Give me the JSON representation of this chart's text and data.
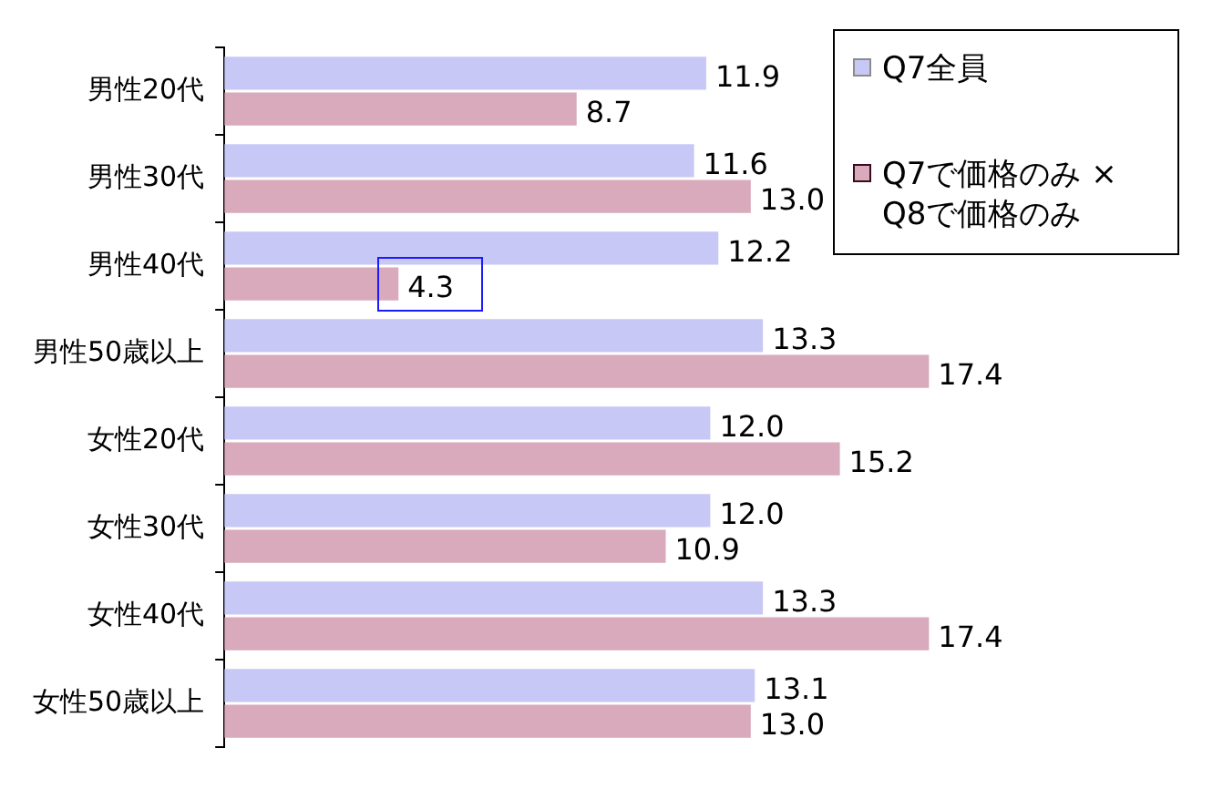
{
  "chart_data": {
    "type": "bar",
    "orientation": "horizontal",
    "categories": [
      "男性20代",
      "男性30代",
      "男性40代",
      "男性50歳以上",
      "女性20代",
      "女性30代",
      "女性40代",
      "女性50歳以上"
    ],
    "series": [
      {
        "name": "Q7全員",
        "color": "#c8c8f6",
        "values": [
          11.9,
          11.6,
          12.2,
          13.3,
          12.0,
          12.0,
          13.3,
          13.1
        ],
        "value_labels": [
          "11.9",
          "11.6",
          "12.2",
          "13.3",
          "12.0",
          "12.0",
          "13.3",
          "13.1"
        ]
      },
      {
        "name": "Q7で価格のみ × Q8で価格のみ",
        "color": "#d8aabb",
        "values": [
          8.7,
          13.0,
          4.3,
          17.4,
          15.2,
          10.9,
          17.4,
          13.0
        ],
        "value_labels": [
          "8.7",
          "13.0",
          "4.3",
          "17.4",
          "15.2",
          "10.9",
          "17.4",
          "13.0"
        ]
      }
    ],
    "legend": "top right",
    "grid": false,
    "tick_labels": "y"
  }
}
